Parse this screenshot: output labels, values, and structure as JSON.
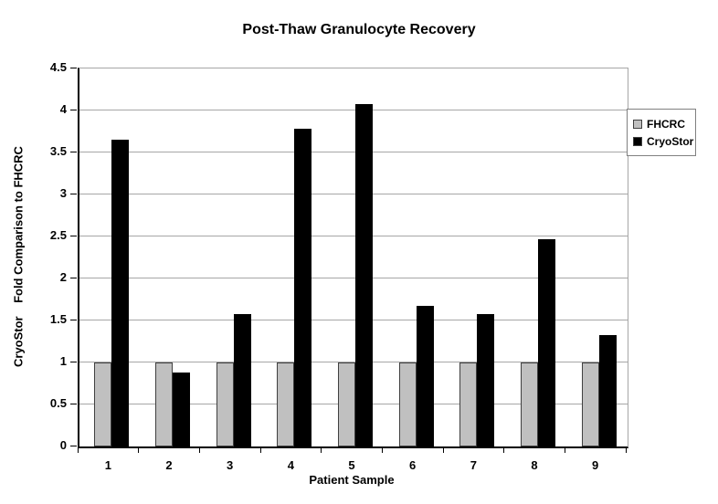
{
  "chart_data": {
    "type": "bar",
    "title": "Post-Thaw Granulocyte Recovery",
    "xlabel": "Patient Sample",
    "ylabel": "CryoStor    Fold Comparison to FHCRC",
    "categories": [
      "1",
      "2",
      "3",
      "4",
      "5",
      "6",
      "7",
      "8",
      "9"
    ],
    "series": [
      {
        "name": "FHCRC",
        "color": "#c0c0c0",
        "values": [
          1,
          1,
          1,
          1,
          1,
          1,
          1,
          1,
          1
        ]
      },
      {
        "name": "CryoStor",
        "color": "#000000",
        "values": [
          3.65,
          0.88,
          1.58,
          3.78,
          4.08,
          1.67,
          1.58,
          2.47,
          1.33
        ]
      }
    ],
    "ylim": [
      0,
      4.5
    ],
    "yticks": [
      0,
      0.5,
      1,
      1.5,
      2,
      2.5,
      3,
      3.5,
      4,
      4.5
    ],
    "grid": true,
    "legend_position": "right"
  },
  "colors": {
    "gridline": "#a6a6a6",
    "axis": "#000000",
    "bar_border": "#404040",
    "legend_border": "#808080",
    "background": "#ffffff"
  }
}
